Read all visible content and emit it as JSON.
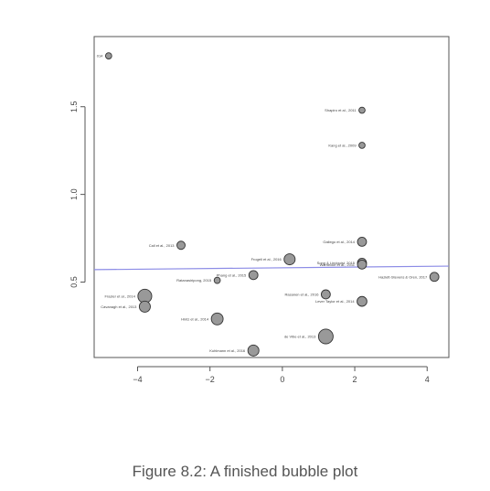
{
  "caption": "Figure 8.2: A finished bubble plot",
  "chart_data": {
    "type": "scatter",
    "title": "",
    "xlabel": "",
    "ylabel": "",
    "xlim": [
      -5.2,
      4.6
    ],
    "ylim": [
      0.07,
      1.9
    ],
    "xticks": [
      -4,
      -2,
      0,
      2,
      4
    ],
    "yticks": [
      0.5,
      1.0,
      1.5
    ],
    "grid": false,
    "bubble_color": "#999999",
    "line_color": "#8c8ce6",
    "regression_line": {
      "x": [
        -5.2,
        4.6
      ],
      "y": [
        0.571,
        0.591
      ]
    },
    "points": [
      {
        "label": "014",
        "x": -4.8,
        "y": 1.79,
        "size": 1
      },
      {
        "label": "Shapiro et al., 2011",
        "x": 2.2,
        "y": 1.48,
        "size": 1
      },
      {
        "label": "Kang et al., 2009",
        "x": 2.2,
        "y": 1.28,
        "size": 1
      },
      {
        "label": "Call et al., 2013",
        "x": -2.8,
        "y": 0.71,
        "size": 1.5
      },
      {
        "label": "Gallego et al., 2014",
        "x": 2.2,
        "y": 0.73,
        "size": 1.7
      },
      {
        "label": "Frogeli et al., 2016",
        "x": 0.2,
        "y": 0.63,
        "size": 2.2
      },
      {
        "label": "Song & Lindquist, 2015",
        "x": 2.2,
        "y": 0.61,
        "size": 1.7
      },
      {
        "label": "Warnecke et al., 2011",
        "x": 2.2,
        "y": 0.6,
        "size": 1.7
      },
      {
        "label": "Hazlett-Stevens & Oren, 2017",
        "x": 4.2,
        "y": 0.53,
        "size": 1.7
      },
      {
        "label": "Phang et al., 2015",
        "x": -0.8,
        "y": 0.54,
        "size": 1.7
      },
      {
        "label": "Ratanasiripong, 2015",
        "x": -1.8,
        "y": 0.51,
        "size": 1
      },
      {
        "label": "Frazier et al., 2014",
        "x": -3.8,
        "y": 0.42,
        "size": 2.9
      },
      {
        "label": "Rasanen et al., 2016",
        "x": 1.2,
        "y": 0.43,
        "size": 1.7
      },
      {
        "label": "Lever Taylor et al., 2014",
        "x": 2.2,
        "y": 0.39,
        "size": 1.9
      },
      {
        "label": "Cavanagh et al., 2013",
        "x": -3.8,
        "y": 0.36,
        "size": 2.2
      },
      {
        "label": "Hintz et al., 2014",
        "x": -1.8,
        "y": 0.29,
        "size": 2.4
      },
      {
        "label": "de Vibe et al., 2013",
        "x": 1.2,
        "y": 0.19,
        "size": 3.1
      },
      {
        "label": "Kuhlmann et al., 2016",
        "x": -0.8,
        "y": 0.11,
        "size": 2.2
      }
    ]
  }
}
